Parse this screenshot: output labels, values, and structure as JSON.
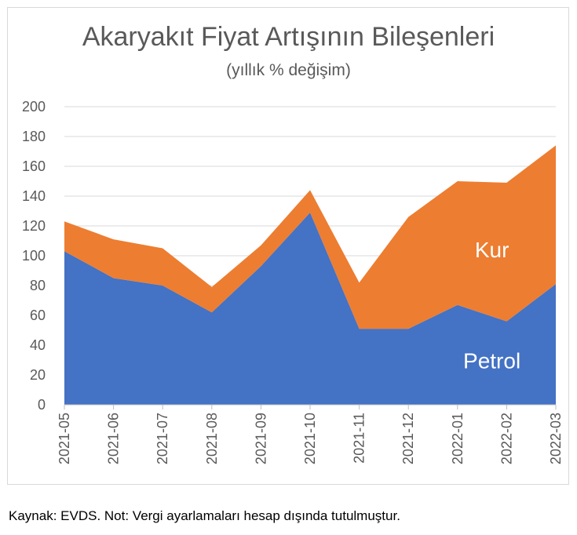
{
  "caption": "Kaynak: EVDS. Not: Vergi ayarlamaları hesap dışında tutulmuştur.",
  "chart_data": {
    "type": "area",
    "stacked": true,
    "title": "Akaryakıt Fiyat Artışının Bileşenleri",
    "subtitle": "(yıllık % değişim)",
    "xlabel": "",
    "ylabel": "",
    "ylim": [
      0,
      200
    ],
    "yticks": [
      0,
      20,
      40,
      60,
      80,
      100,
      120,
      140,
      160,
      180,
      200
    ],
    "grid": true,
    "legend": "none",
    "categories": [
      "2021-05",
      "2021-06",
      "2021-07",
      "2021-08",
      "2021-09",
      "2021-10",
      "2021-11",
      "2021-12",
      "2022-01",
      "2022-02",
      "2022-03"
    ],
    "series": [
      {
        "name": "Petrol",
        "color": "#4472c4",
        "values": [
          103,
          85,
          80,
          62,
          93,
          129,
          51,
          51,
          67,
          56,
          81
        ]
      },
      {
        "name": "Kur",
        "color": "#ed7d31",
        "values": [
          20,
          26,
          25,
          17,
          14,
          15,
          31,
          75,
          83,
          93,
          93
        ]
      }
    ]
  }
}
